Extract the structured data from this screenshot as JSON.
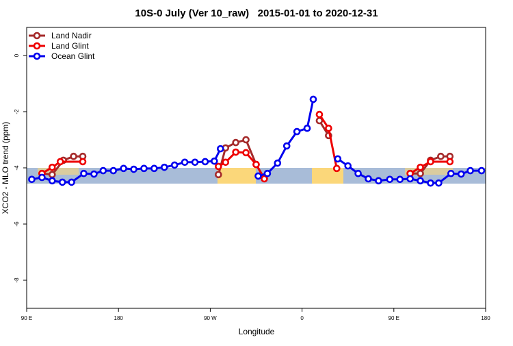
{
  "chart_data": {
    "type": "line",
    "title": "10S-0 July (Ver 10_raw)   2015-01-01 to 2020-12-31",
    "x_label": "Longitude",
    "y_label": "XCO2 - MLO trend (ppm)",
    "xlim": [
      90,
      540
    ],
    "ylim": [
      -9,
      1
    ],
    "xticks": [
      {
        "value": 90,
        "label": "90 E"
      },
      {
        "value": 180,
        "label": "180"
      },
      {
        "value": 270,
        "label": "90 W"
      },
      {
        "value": 360,
        "label": "0"
      },
      {
        "value": 450,
        "label": "90 E"
      },
      {
        "value": 540,
        "label": "180"
      }
    ],
    "yticks": [
      0,
      -2,
      -4,
      -6,
      -8
    ],
    "legend": "top-left",
    "series": [
      {
        "name": "Land Nadir",
        "color": "#a52a2a",
        "x": [
          105,
          115,
          126,
          136,
          145,
          200,
          278,
          285,
          295,
          305,
          315,
          323,
          350,
          377,
          386,
          420,
          466,
          476,
          486,
          496,
          505
        ],
        "values": [
          -4.2,
          -4.24,
          -3.73,
          -3.59,
          -3.59,
          null,
          -4.24,
          -3.29,
          -3.1,
          -3.0,
          -3.88,
          -4.37,
          null,
          -2.32,
          -2.85,
          null,
          -4.2,
          -4.2,
          -3.73,
          -3.59,
          -3.59
        ]
      },
      {
        "name": "Land Glint",
        "color": "#ee0000",
        "x": [
          105,
          115,
          123,
          145,
          200,
          278,
          285,
          295,
          305,
          315,
          323,
          350,
          377,
          386,
          394,
          420,
          466,
          476,
          486,
          505
        ],
        "values": [
          -4.2,
          -3.98,
          -3.78,
          -3.78,
          null,
          -3.95,
          -3.8,
          -3.44,
          -3.46,
          -3.88,
          -4.39,
          null,
          -2.1,
          -2.59,
          -4.02,
          null,
          -4.2,
          -3.98,
          -3.78,
          -3.78
        ]
      },
      {
        "name": "Ocean Glint",
        "color": "#0000ee",
        "x": [
          95,
          105,
          115,
          125,
          134,
          146,
          156,
          165,
          175,
          185,
          195,
          205,
          215,
          225,
          235,
          245,
          255,
          265,
          274,
          280,
          300,
          317,
          326,
          336,
          345,
          355,
          365,
          371,
          385,
          395,
          405,
          415,
          425,
          435,
          446,
          456,
          466,
          476,
          486,
          494,
          506,
          516,
          525,
          536
        ],
        "values": [
          -4.41,
          -4.34,
          -4.46,
          -4.51,
          -4.51,
          -4.2,
          -4.22,
          -4.1,
          -4.1,
          -4.02,
          -4.05,
          -4.02,
          -4.02,
          -3.98,
          -3.9,
          -3.8,
          -3.8,
          -3.78,
          -3.76,
          -3.32,
          null,
          -4.29,
          -4.2,
          -3.83,
          -3.22,
          -2.71,
          -2.59,
          -1.56,
          null,
          -3.68,
          -3.93,
          -4.2,
          -4.39,
          -4.46,
          -4.41,
          -4.41,
          -4.39,
          -4.46,
          -4.54,
          -4.54,
          -4.2,
          -4.22,
          -4.1,
          -4.1
        ]
      }
    ]
  }
}
